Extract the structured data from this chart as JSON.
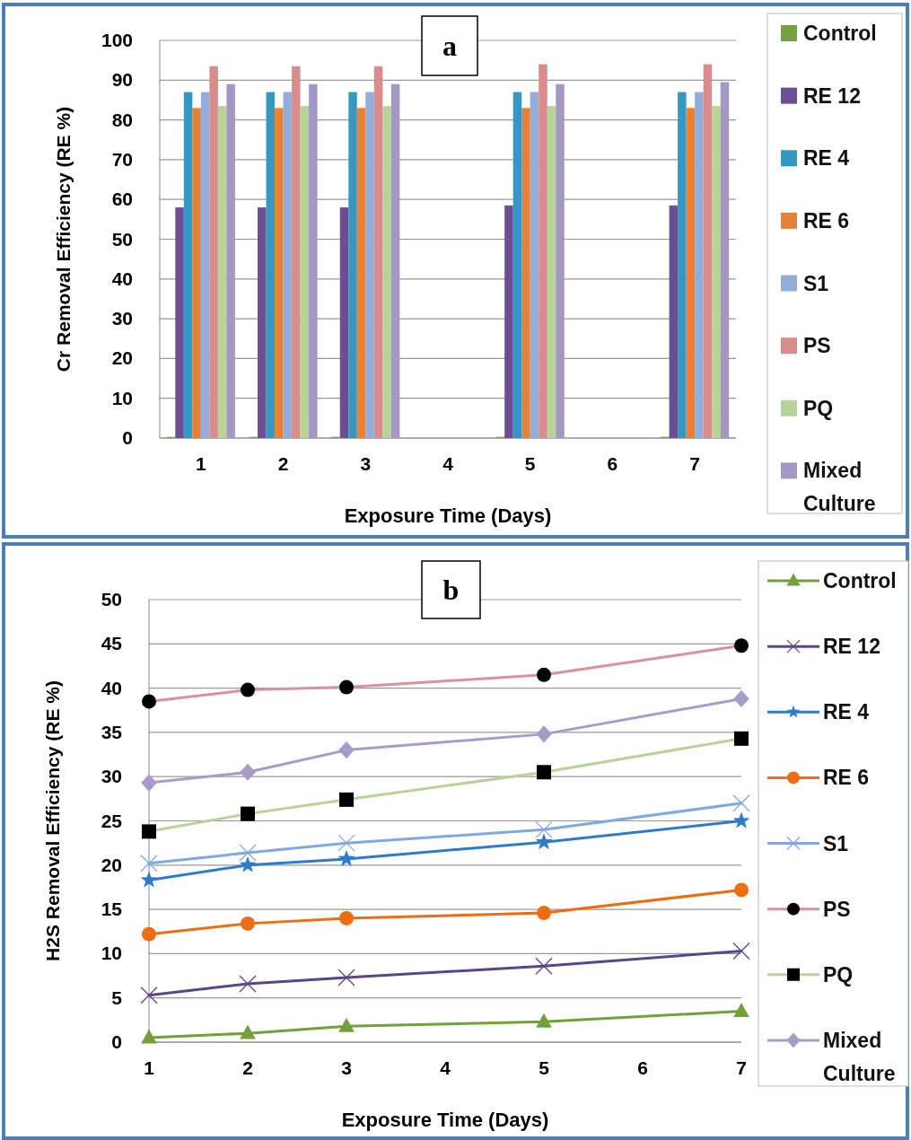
{
  "chart_data": [
    {
      "type": "bar",
      "annotations": [
        "a"
      ],
      "xlabel": "Exposure Time (Days)",
      "ylabel": "Cr Removal Efficiency (RE %)",
      "categories": [
        "1",
        "2",
        "3",
        "4",
        "5",
        "6",
        "7"
      ],
      "ylim": [
        0,
        100
      ],
      "yticks": [
        0,
        10,
        20,
        30,
        40,
        50,
        60,
        70,
        80,
        90,
        100
      ],
      "grid": "y",
      "legend": "right",
      "series": [
        {
          "name": "Control",
          "color": "#77a043",
          "values": [
            0.3,
            0.3,
            0.3,
            null,
            0.3,
            null,
            0.3
          ]
        },
        {
          "name": "RE 12",
          "color": "#6b4e94",
          "values": [
            58,
            58,
            58,
            null,
            58.5,
            null,
            58.5
          ]
        },
        {
          "name": "RE 4",
          "color": "#3498c0",
          "values": [
            87,
            87,
            87,
            null,
            87,
            null,
            87
          ]
        },
        {
          "name": "RE 6",
          "color": "#e58237",
          "values": [
            83,
            83,
            83,
            null,
            83,
            null,
            83
          ]
        },
        {
          "name": "S1",
          "color": "#93acd9",
          "values": [
            87,
            87,
            87,
            null,
            87,
            null,
            87
          ]
        },
        {
          "name": "PS",
          "color": "#d98c8c",
          "values": [
            93.5,
            93.5,
            93.5,
            null,
            94,
            null,
            94
          ]
        },
        {
          "name": "PQ",
          "color": "#b8d396",
          "values": [
            83.5,
            83.5,
            83.5,
            null,
            83.5,
            null,
            83.5
          ]
        },
        {
          "name": "Mixed Culture",
          "color": "#a397c4",
          "values": [
            89,
            89,
            89,
            null,
            89,
            null,
            89.5
          ]
        }
      ]
    },
    {
      "type": "line",
      "annotations": [
        "b"
      ],
      "xlabel": "Exposure Time (Days)",
      "ylabel": "H2S Removal Efficiency (RE %)",
      "x": [
        1,
        2,
        3,
        5,
        7
      ],
      "xlim": [
        1,
        7
      ],
      "xticks": [
        1,
        2,
        3,
        4,
        5,
        6,
        7
      ],
      "ylim": [
        0,
        50
      ],
      "yticks": [
        0,
        5,
        10,
        15,
        20,
        25,
        30,
        35,
        40,
        45,
        50
      ],
      "grid": "y",
      "legend": "right",
      "series": [
        {
          "name": "Control",
          "color": "#71a03c",
          "marker": "triangle",
          "values": [
            0.5,
            1.0,
            1.8,
            2.3,
            3.5
          ]
        },
        {
          "name": "RE 12",
          "color": "#5a4588",
          "marker": "cross",
          "values": [
            5.3,
            6.6,
            7.3,
            8.6,
            10.3
          ]
        },
        {
          "name": "RE 4",
          "color": "#2f7bcb",
          "marker": "star",
          "values": [
            18.3,
            20.0,
            20.7,
            22.6,
            25.0
          ]
        },
        {
          "name": "RE 6",
          "color": "#ec6d12",
          "marker": "circle",
          "values": [
            12.2,
            13.4,
            14.0,
            14.6,
            17.2
          ]
        },
        {
          "name": "S1",
          "color": "#7fa9e0",
          "marker": "cross",
          "values": [
            20.2,
            21.4,
            22.5,
            24.0,
            27.0
          ]
        },
        {
          "name": "PS",
          "color": "#d9919a",
          "marker": "circle",
          "colors": [
            "#000000",
            "#000000",
            "#000000",
            "#000000",
            "#000000"
          ],
          "values": [
            38.5,
            39.8,
            40.1,
            41.5,
            44.8
          ]
        },
        {
          "name": "PQ",
          "color": "#b6d39a",
          "marker": "square",
          "colors": [
            "#000000",
            "#000000",
            "#000000",
            "#000000",
            "#000000"
          ],
          "values": [
            23.8,
            25.8,
            27.4,
            30.5,
            34.3
          ]
        },
        {
          "name": "Mixed Culture",
          "color": "#a99bc9",
          "marker": "diamond",
          "values": [
            29.3,
            30.5,
            33.0,
            34.8,
            38.8
          ]
        }
      ]
    }
  ]
}
